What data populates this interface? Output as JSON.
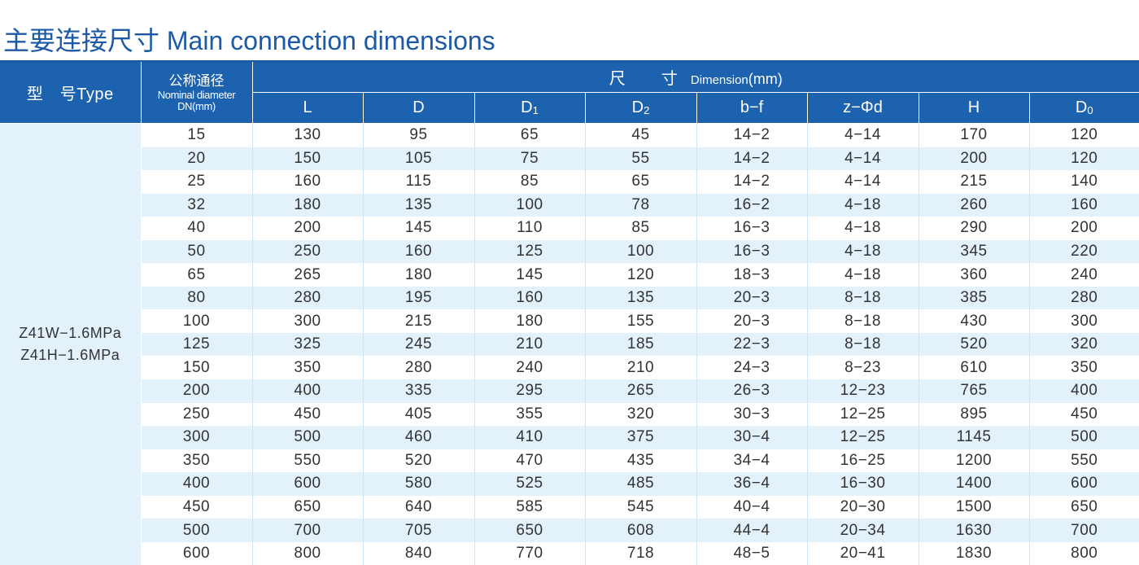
{
  "title": "主要连接尺寸 Main connection dimensions",
  "header": {
    "type": "型　号Type",
    "dn_zh": "公称通径",
    "dn_en": "Nominal diameter",
    "dn_unit": "DN(mm)",
    "dim_zh": "尺　寸",
    "dim_en": " Dimension",
    "dim_unit": "(mm)",
    "columns": [
      {
        "main": "L",
        "sub": ""
      },
      {
        "main": "D",
        "sub": ""
      },
      {
        "main": "D",
        "sub": "1"
      },
      {
        "main": "D",
        "sub": "2"
      },
      {
        "main": "b−f",
        "sub": ""
      },
      {
        "main": "z−Φd",
        "sub": ""
      },
      {
        "main": "H",
        "sub": ""
      },
      {
        "main": "D",
        "sub": "0"
      }
    ]
  },
  "models": [
    "Z41W−1.6MPa",
    "Z41H−1.6MPa"
  ],
  "rows": [
    [
      "15",
      "130",
      "95",
      "65",
      "45",
      "14−2",
      "4−14",
      "170",
      "120"
    ],
    [
      "20",
      "150",
      "105",
      "75",
      "55",
      "14−2",
      "4−14",
      "200",
      "120"
    ],
    [
      "25",
      "160",
      "115",
      "85",
      "65",
      "14−2",
      "4−14",
      "215",
      "140"
    ],
    [
      "32",
      "180",
      "135",
      "100",
      "78",
      "16−2",
      "4−18",
      "260",
      "160"
    ],
    [
      "40",
      "200",
      "145",
      "110",
      "85",
      "16−3",
      "4−18",
      "290",
      "200"
    ],
    [
      "50",
      "250",
      "160",
      "125",
      "100",
      "16−3",
      "4−18",
      "345",
      "220"
    ],
    [
      "65",
      "265",
      "180",
      "145",
      "120",
      "18−3",
      "4−18",
      "360",
      "240"
    ],
    [
      "80",
      "280",
      "195",
      "160",
      "135",
      "20−3",
      "8−18",
      "385",
      "280"
    ],
    [
      "100",
      "300",
      "215",
      "180",
      "155",
      "20−3",
      "8−18",
      "430",
      "300"
    ],
    [
      "125",
      "325",
      "245",
      "210",
      "185",
      "22−3",
      "8−18",
      "520",
      "320"
    ],
    [
      "150",
      "350",
      "280",
      "240",
      "210",
      "24−3",
      "8−23",
      "610",
      "350"
    ],
    [
      "200",
      "400",
      "335",
      "295",
      "265",
      "26−3",
      "12−23",
      "765",
      "400"
    ],
    [
      "250",
      "450",
      "405",
      "355",
      "320",
      "30−3",
      "12−25",
      "895",
      "450"
    ],
    [
      "300",
      "500",
      "460",
      "410",
      "375",
      "30−4",
      "12−25",
      "1145",
      "500"
    ],
    [
      "350",
      "550",
      "520",
      "470",
      "435",
      "34−4",
      "16−25",
      "1200",
      "550"
    ],
    [
      "400",
      "600",
      "580",
      "525",
      "485",
      "36−4",
      "16−30",
      "1400",
      "600"
    ],
    [
      "450",
      "650",
      "640",
      "585",
      "545",
      "40−4",
      "20−30",
      "1500",
      "650"
    ],
    [
      "500",
      "700",
      "705",
      "650",
      "608",
      "44−4",
      "20−34",
      "1630",
      "700"
    ],
    [
      "600",
      "800",
      "840",
      "770",
      "718",
      "48−5",
      "20−41",
      "1830",
      "800"
    ]
  ]
}
